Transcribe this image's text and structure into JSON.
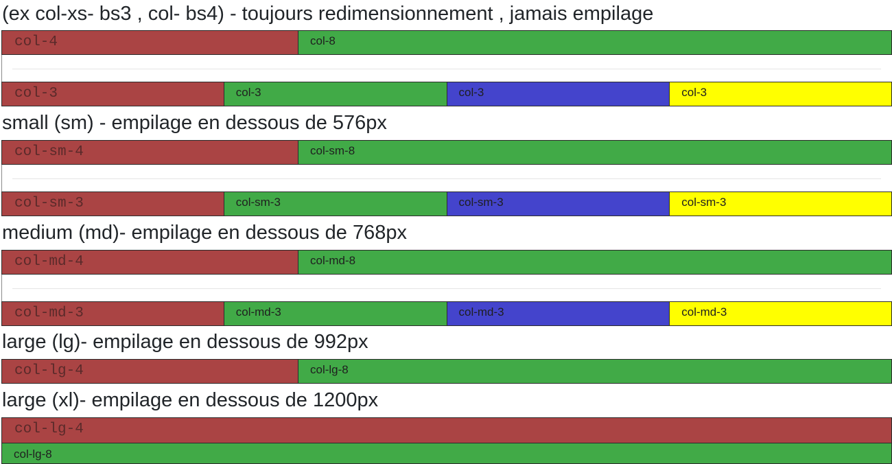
{
  "colors": {
    "red": "#aa4444",
    "green": "#41aa47",
    "blue": "#4444cc",
    "yellow": "#ffff00"
  },
  "section_xs": {
    "heading": "(ex col-xs- bs3 , col- bs4) - toujours redimensionnement , jamais empilage",
    "row1": [
      "col-4",
      "col-8"
    ],
    "row2": [
      "col-3",
      "col-3",
      "col-3",
      "col-3"
    ]
  },
  "section_sm": {
    "heading": "small (sm) - empilage en dessous de 576px",
    "row1": [
      "col-sm-4",
      "col-sm-8"
    ],
    "row2": [
      "col-sm-3",
      "col-sm-3",
      "col-sm-3",
      "col-sm-3"
    ]
  },
  "section_md": {
    "heading": "medium (md)- empilage en dessous de 768px",
    "row1": [
      "col-md-4",
      "col-md-8"
    ],
    "row2": [
      "col-md-3",
      "col-md-3",
      "col-md-3",
      "col-md-3"
    ]
  },
  "section_lg": {
    "heading": "large (lg)- empilage en dessous de 992px",
    "row1": [
      "col-lg-4",
      "col-lg-8"
    ]
  },
  "section_xl": {
    "heading": "large (xl)- empilage en dessous de 1200px",
    "row1": [
      "col-lg-4",
      "col-lg-8"
    ]
  }
}
